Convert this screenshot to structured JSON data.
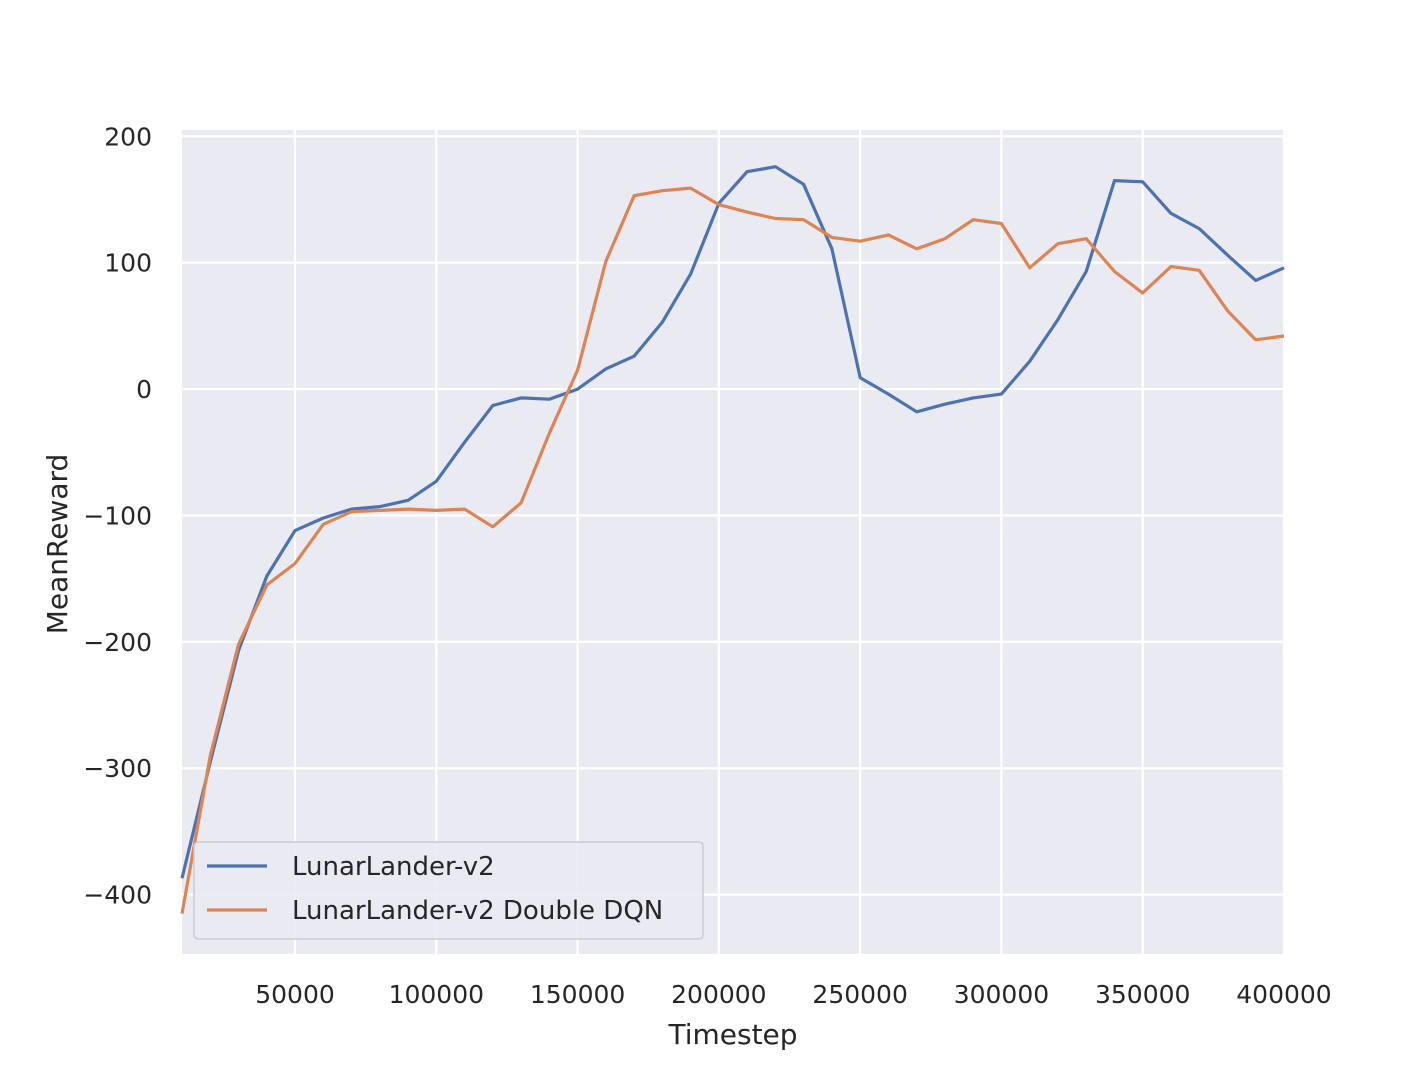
{
  "chart_data": {
    "type": "line",
    "xlabel": "Timestep",
    "ylabel": "MeanReward",
    "xlim": [
      10000,
      400000
    ],
    "ylim": [
      -447,
      205
    ],
    "x_ticks": [
      50000,
      100000,
      150000,
      200000,
      250000,
      300000,
      350000,
      400000
    ],
    "y_ticks": [
      200,
      100,
      0,
      -100,
      -200,
      -300,
      -400
    ],
    "y_tick_labels": [
      "200",
      "100",
      "0",
      "−100",
      "−200",
      "−300",
      "−400"
    ],
    "grid": true,
    "legend_position": "lower-left",
    "x": [
      10000,
      20000,
      30000,
      40000,
      50000,
      60000,
      70000,
      80000,
      90000,
      100000,
      110000,
      120000,
      130000,
      140000,
      150000,
      160000,
      170000,
      180000,
      190000,
      200000,
      210000,
      220000,
      230000,
      240000,
      250000,
      260000,
      270000,
      280000,
      290000,
      300000,
      310000,
      320000,
      330000,
      340000,
      350000,
      360000,
      370000,
      380000,
      390000,
      400000
    ],
    "series": [
      {
        "name": "LunarLander-v2",
        "color": "#4c72b0",
        "values": [
          -387,
          -295,
          -207,
          -148,
          -112,
          -102,
          -95,
          -93,
          -88,
          -73,
          -42,
          -13,
          -7,
          -8,
          0,
          16,
          26,
          53,
          91,
          147,
          172,
          176,
          162,
          111,
          9,
          -4,
          -18,
          -12,
          -7,
          -4,
          22,
          55,
          93,
          165,
          164,
          139,
          127,
          106,
          86,
          96
        ]
      },
      {
        "name": "LunarLander-v2 Double DQN",
        "color": "#dd8452",
        "values": [
          -415,
          -290,
          -202,
          -155,
          -138,
          -107,
          -97,
          -96,
          -95,
          -96,
          -95,
          -109,
          -90,
          -35,
          15,
          101,
          153,
          157,
          159,
          146,
          140,
          135,
          134,
          120,
          117,
          122,
          111,
          119,
          134,
          131,
          96,
          115,
          119,
          93,
          76,
          97,
          94,
          62,
          39,
          42
        ]
      }
    ]
  }
}
